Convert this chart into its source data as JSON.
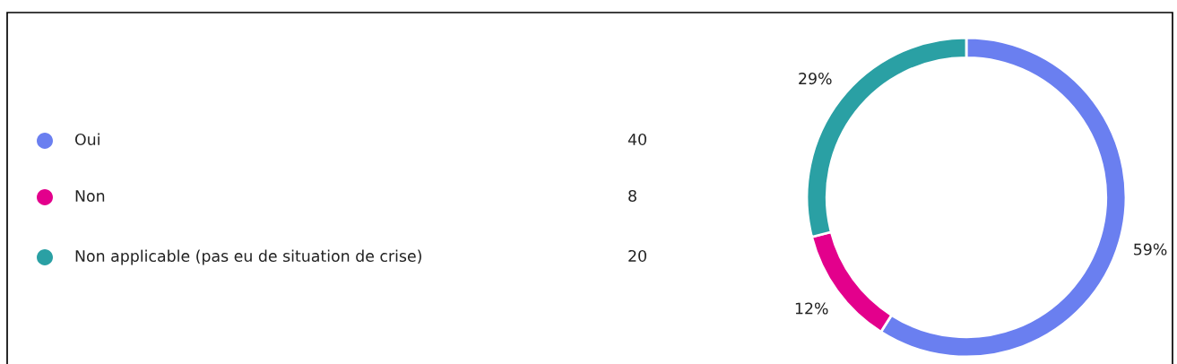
{
  "chart_data": {
    "type": "donut",
    "categories": [
      "Oui",
      "Non",
      "Non applicable (pas eu de situation de crise)"
    ],
    "values": [
      59,
      12,
      29
    ],
    "colors": [
      "#6a7ff0",
      "#e3008c",
      "#2aa0a4"
    ],
    "value_labels": [
      "59%",
      "12%",
      "29%"
    ],
    "annotations": [
      "40",
      "8",
      "20"
    ],
    "legend": "left"
  }
}
